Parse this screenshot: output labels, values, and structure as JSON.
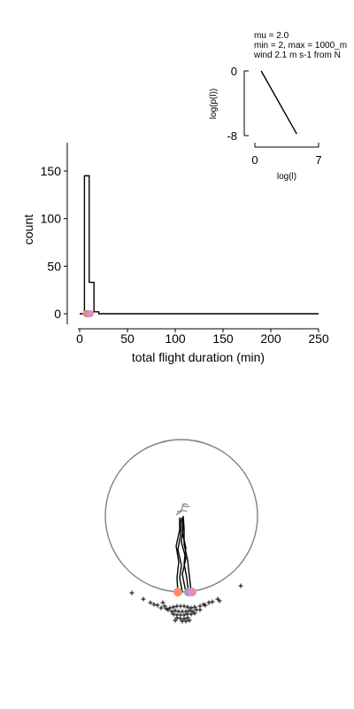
{
  "chart_data": [
    {
      "type": "bar",
      "title": "",
      "xlabel": "total flight duration (min)",
      "ylabel": "count",
      "xlim": [
        -2,
        250
      ],
      "ylim": [
        -10,
        180
      ],
      "xticks": [
        "0",
        "50",
        "100",
        "150",
        "200",
        "250"
      ],
      "yticks": [
        "0",
        "50",
        "100",
        "150"
      ],
      "bin_edges": [
        0,
        5,
        10,
        15,
        20,
        250
      ],
      "counts": [
        0,
        145,
        33,
        2,
        0
      ],
      "markers": [
        {
          "x": 7,
          "color": "#fc8d62"
        },
        {
          "x": 9,
          "color": "#8da0cb"
        },
        {
          "x": 11,
          "color": "#e78ac3"
        }
      ]
    },
    {
      "type": "line",
      "xlabel": "log(l)",
      "ylabel": "log(p(l))",
      "xlim": [
        0,
        7
      ],
      "ylim": [
        -8,
        0
      ],
      "xticks": [
        "0",
        "7"
      ],
      "yticks": [
        "0",
        "-8"
      ],
      "series": [
        {
          "x": [
            0.69,
            4.6
          ],
          "y": [
            0.0,
            -7.8
          ]
        }
      ],
      "annotations": [
        "mu = 2.0",
        "min = 2, max = 1000_m",
        "wind 2.1 m s-1 from N"
      ]
    },
    {
      "type": "scatter",
      "ring_color": "#808080",
      "track_color": "#000000",
      "start_markers": [
        {
          "color": "#fc8d62"
        },
        {
          "color": "#8da0cb"
        },
        {
          "color": "#e78ac3"
        }
      ]
    }
  ]
}
